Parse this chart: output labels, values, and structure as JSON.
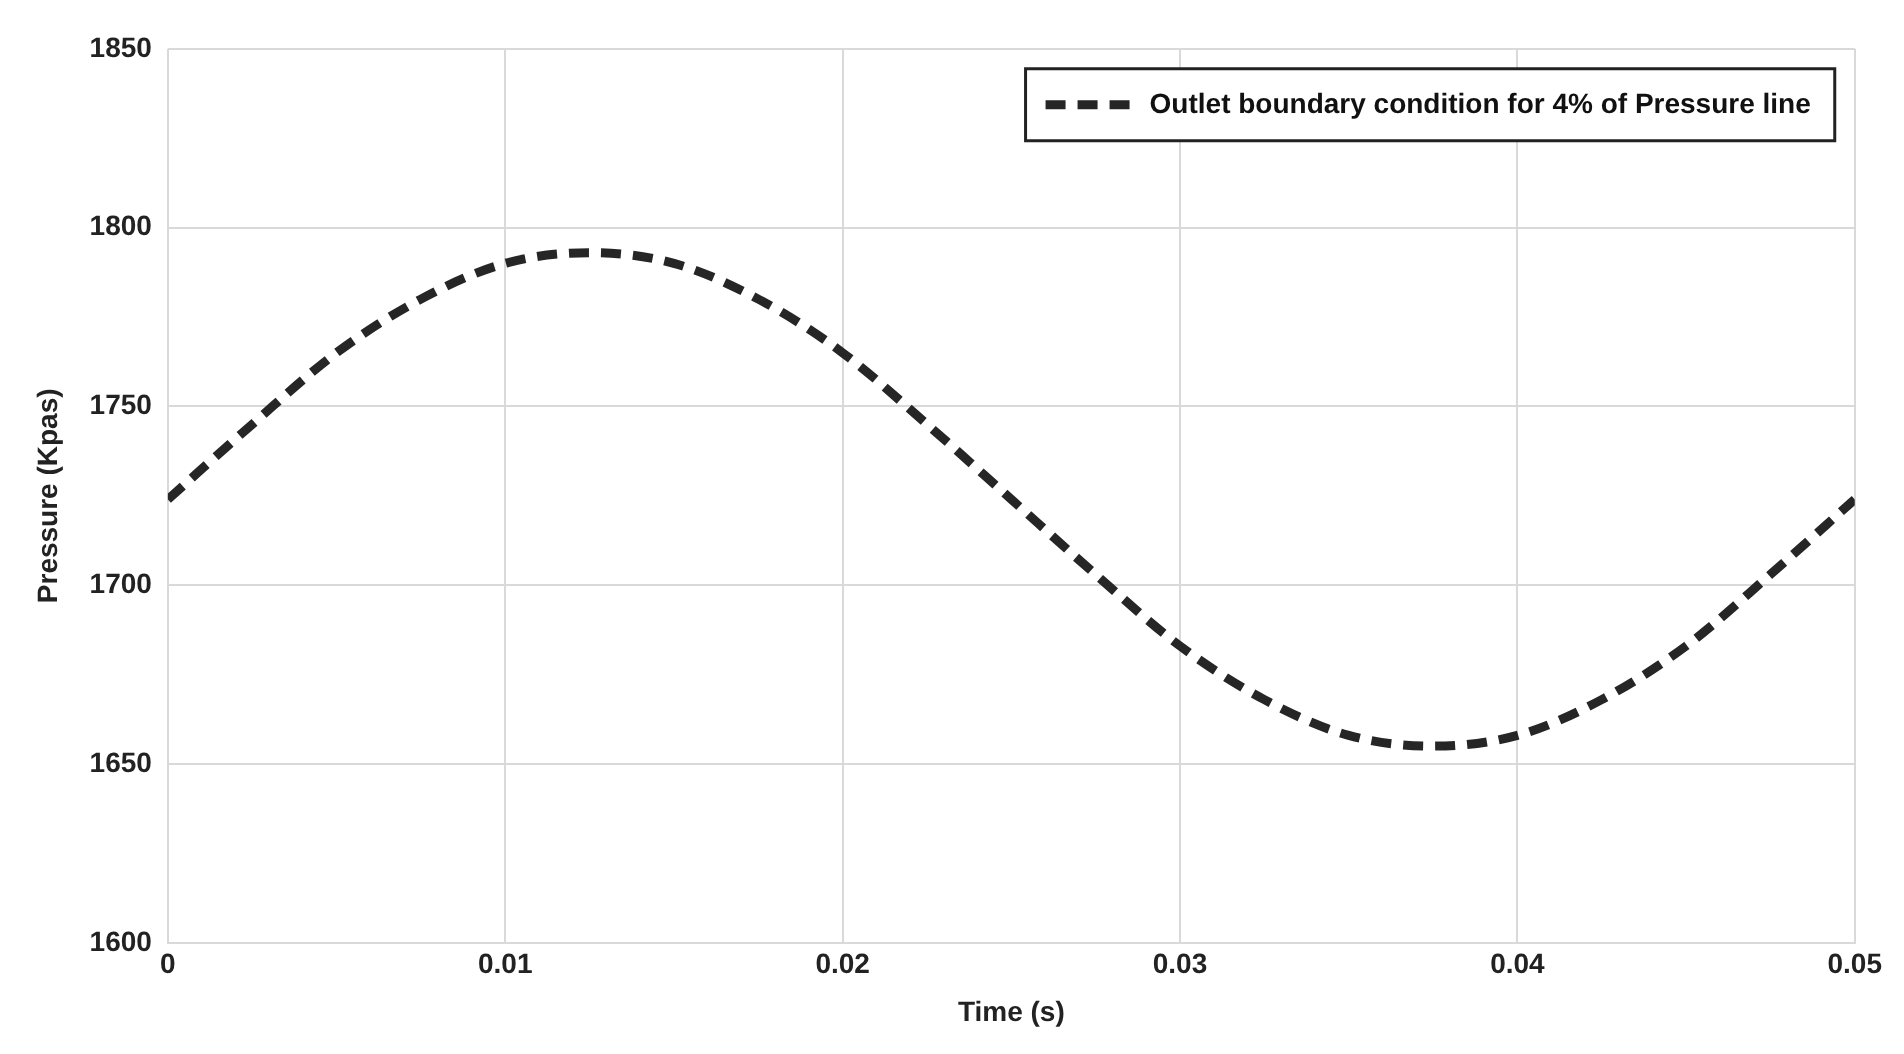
{
  "chart_data": {
    "type": "line",
    "xlabel": "Time (s)",
    "ylabel": "Pressure (Kpas)",
    "x": [
      0,
      0.0025,
      0.005,
      0.0075,
      0.01,
      0.0125,
      0.015,
      0.0175,
      0.02,
      0.0225,
      0.025,
      0.0275,
      0.03,
      0.0325,
      0.035,
      0.0375,
      0.04,
      0.0425,
      0.045,
      0.0475,
      0.05
    ],
    "series": [
      {
        "name": "Outlet boundary condition for 4% of Pressure line",
        "color": "#262626",
        "line_style": "dashed",
        "values": [
          1724,
          1745,
          1765,
          1780,
          1790,
          1793,
          1790,
          1780,
          1765,
          1745,
          1724,
          1703,
          1683,
          1668,
          1658,
          1655,
          1658,
          1668,
          1683,
          1703,
          1724
        ]
      }
    ],
    "xlim": [
      0,
      0.05
    ],
    "xticks": [
      0,
      0.01,
      0.02,
      0.03,
      0.04,
      0.05
    ],
    "ylim": [
      1600,
      1850
    ],
    "yticks": [
      1600,
      1650,
      1700,
      1750,
      1800,
      1850
    ],
    "grid": true,
    "legend": "top right",
    "marker": "none"
  }
}
